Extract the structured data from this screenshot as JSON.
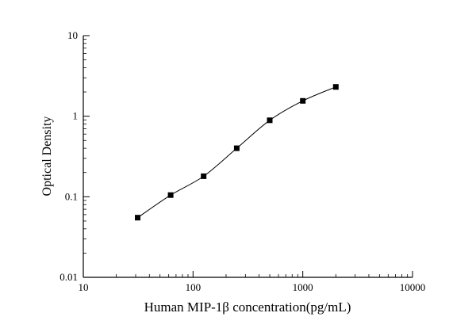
{
  "chart_data": {
    "type": "line",
    "title": "",
    "xlabel": "Human MIP-1β concentration(pg/mL)",
    "ylabel": "Optical Density",
    "xscale": "log",
    "yscale": "log",
    "xlim": [
      10,
      10000
    ],
    "ylim": [
      0.01,
      10
    ],
    "x_tick_labels": [
      "10",
      "100",
      "1000",
      "10000"
    ],
    "y_tick_labels": [
      "0.01",
      "0.1",
      "1",
      "10"
    ],
    "grid": false,
    "legend": null,
    "marker": "square",
    "line_color": "#000000",
    "marker_color": "#000000",
    "x": [
      31.25,
      62.5,
      125,
      250,
      500,
      1000,
      2000
    ],
    "y": [
      0.055,
      0.105,
      0.18,
      0.4,
      0.89,
      1.55,
      2.31
    ]
  }
}
